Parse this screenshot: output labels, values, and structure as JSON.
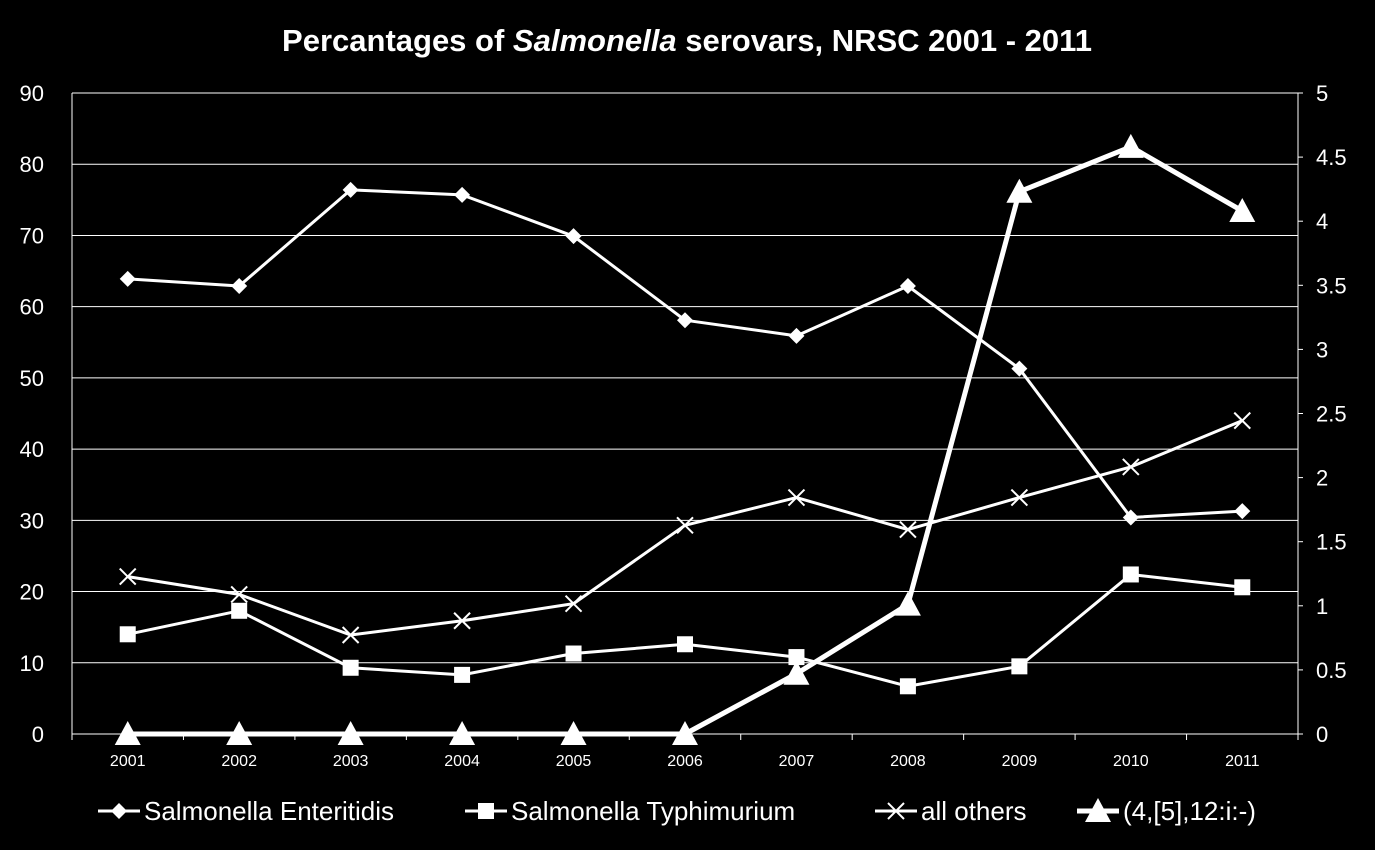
{
  "chart_data": {
    "type": "line",
    "title": {
      "prefix": "Percantages of ",
      "italic": "Salmonella",
      "suffix": " serovars, NRSC  2001 - 2011"
    },
    "xlabel": "",
    "ylabel": "",
    "y2label": "",
    "categories": [
      "2001",
      "2002",
      "2003",
      "2004",
      "2005",
      "2006",
      "2007",
      "2008",
      "2009",
      "2010",
      "2011"
    ],
    "ylim": [
      0,
      90
    ],
    "yticks": [
      "0",
      "10",
      "20",
      "30",
      "40",
      "50",
      "60",
      "70",
      "80",
      "90"
    ],
    "y2lim": [
      0,
      5
    ],
    "y2ticks": [
      "0",
      "0.5",
      "1",
      "1.5",
      "2",
      "2.5",
      "3",
      "3.5",
      "4",
      "4.5",
      "5"
    ],
    "grid": true,
    "legend_position": "bottom",
    "colors": {
      "background": "#000000",
      "lines": "#ffffff",
      "grid": "#ffffff"
    },
    "series": [
      {
        "name": "Salmonella Enteritidis",
        "marker": "diamond",
        "axis": "left",
        "values": [
          63.9,
          62.9,
          76.4,
          75.7,
          69.9,
          58.1,
          55.9,
          62.9,
          51.3,
          30.4,
          31.3
        ]
      },
      {
        "name": "Salmonella Typhimurium",
        "marker": "square",
        "axis": "left",
        "values": [
          14.0,
          17.3,
          9.3,
          8.3,
          11.3,
          12.6,
          10.8,
          6.7,
          9.5,
          22.4,
          20.6
        ]
      },
      {
        "name": "all others",
        "marker": "x",
        "axis": "left",
        "values": [
          22.1,
          19.6,
          13.9,
          15.9,
          18.3,
          29.3,
          33.2,
          28.7,
          33.2,
          37.5,
          44.0
        ]
      },
      {
        "name": "(4,[5],12:i:-)",
        "marker": "triangle",
        "axis": "right",
        "values": [
          0,
          0,
          0,
          0,
          0,
          0,
          0.47,
          1.01,
          4.23,
          4.58,
          4.08
        ]
      }
    ]
  }
}
